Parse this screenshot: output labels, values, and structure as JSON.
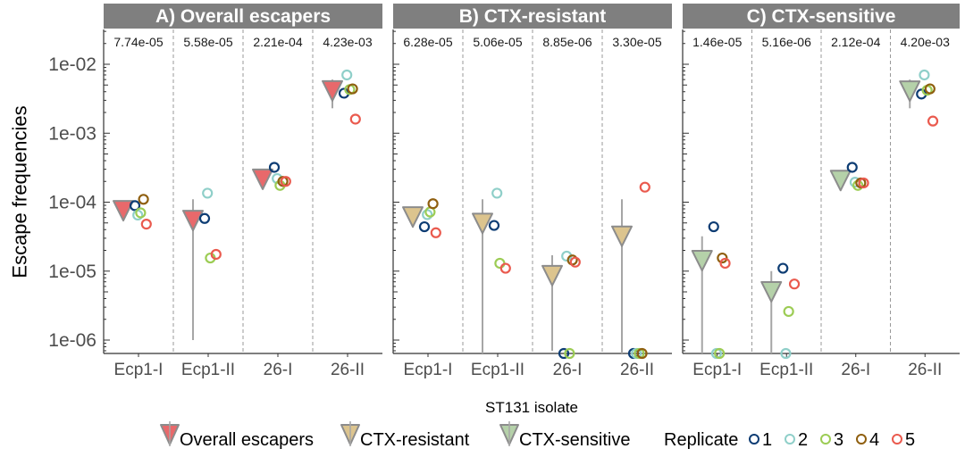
{
  "chart_data": {
    "type": "scatter",
    "ylabel": "Escape frequencies",
    "xlabel": "ST131 isolate",
    "yscale": "log10",
    "ylim": [
      6e-07,
      0.03
    ],
    "yticks": [
      {
        "value": 0.01,
        "label": "1e-02"
      },
      {
        "value": 0.001,
        "label": "1e-03"
      },
      {
        "value": 0.0001,
        "label": "1e-04"
      },
      {
        "value": 1e-05,
        "label": "1e-05"
      },
      {
        "value": 1e-06,
        "label": "1e-06"
      }
    ],
    "categories": [
      "Ecp1-I",
      "Ecp1-II",
      "26-I",
      "26-II"
    ],
    "grid": false,
    "legend_position": "bottom",
    "legend": {
      "means": [
        {
          "name": "Overall escapers",
          "color": "#e8696b"
        },
        {
          "name": "CTX-resistant",
          "color": "#dcc48e"
        },
        {
          "name": "CTX-sensitive",
          "color": "#b5d1a9"
        }
      ],
      "replicate_title": "Replicate",
      "replicates": [
        {
          "name": "1",
          "color": "#0d3c73"
        },
        {
          "name": "2",
          "color": "#8fcfc9"
        },
        {
          "name": "3",
          "color": "#9ccc54"
        },
        {
          "name": "4",
          "color": "#8f5f0f"
        },
        {
          "name": "5",
          "color": "#ea5a4e"
        }
      ]
    },
    "panels": [
      {
        "title": "A)  Overall escapers",
        "mean_color": "#e8696b",
        "groups": [
          {
            "category": "Ecp1-I",
            "mean": 7.74e-05,
            "mean_label": "7.74e-05",
            "err": [
              5.5e-05,
              0.0001
            ],
            "replicates": [
              8.9e-05,
              6.5e-05,
              7e-05,
              0.00011,
              4.8e-05
            ]
          },
          {
            "category": "Ecp1-II",
            "mean": 5.58e-05,
            "mean_label": "5.58e-05",
            "err": [
              1e-06,
              0.00011
            ],
            "replicates": [
              5.8e-05,
              0.000135,
              1.55e-05,
              null,
              1.75e-05
            ]
          },
          {
            "category": "26-I",
            "mean": 0.000221,
            "mean_label": "2.21e-04",
            "err": [
              0.00019,
              0.00025
            ],
            "replicates": [
              0.00032,
              0.00022,
              0.000175,
              0.0002,
              0.0002
            ]
          },
          {
            "category": "26-II",
            "mean": 0.00423,
            "mean_label": "4.23e-03",
            "err": [
              0.0023,
              0.006
            ],
            "replicates": [
              0.0038,
              0.007,
              0.0043,
              0.0044,
              0.0016
            ]
          }
        ]
      },
      {
        "title": "B)  CTX-resistant",
        "mean_color": "#dcc48e",
        "groups": [
          {
            "category": "Ecp1-I",
            "mean": 6.28e-05,
            "mean_label": "6.28e-05",
            "err": [
              4.3e-05,
              8.2e-05
            ],
            "replicates": [
              4.4e-05,
              6.6e-05,
              7.2e-05,
              9.5e-05,
              3.6e-05
            ]
          },
          {
            "category": "Ecp1-II",
            "mean": 5.06e-05,
            "mean_label": "5.06e-05",
            "err": [
              6e-07,
              0.00011
            ],
            "replicates": [
              4.6e-05,
              0.000135,
              1.3e-05,
              null,
              1.1e-05
            ]
          },
          {
            "category": "26-I",
            "mean": 8.85e-06,
            "mean_label": "8.85e-06",
            "err": [
              7e-07,
              1.7e-05
            ],
            "replicates": [
              6e-07,
              1.65e-05,
              6e-07,
              1.45e-05,
              1.35e-05
            ]
          },
          {
            "category": "26-II",
            "mean": 3.3e-05,
            "mean_label": "3.30e-05",
            "err": [
              6e-07,
              0.00011
            ],
            "replicates": [
              6e-07,
              6e-07,
              6e-07,
              6e-07,
              0.000165
            ]
          }
        ]
      },
      {
        "title": "C)  CTX-sensitive",
        "mean_color": "#b5d1a9",
        "groups": [
          {
            "category": "Ecp1-I",
            "mean": 1.46e-05,
            "mean_label": "1.46e-05",
            "err": [
              6e-07,
              3.2e-05
            ],
            "replicates": [
              4.4e-05,
              6e-07,
              6e-07,
              1.55e-05,
              1.3e-05
            ]
          },
          {
            "category": "Ecp1-II",
            "mean": 5.16e-06,
            "mean_label": "5.16e-06",
            "err": [
              6e-07,
              1e-05
            ],
            "replicates": [
              1.1e-05,
              6e-07,
              2.6e-06,
              null,
              6.5e-06
            ]
          },
          {
            "category": "26-I",
            "mean": 0.000212,
            "mean_label": "2.12e-04",
            "err": [
              0.00018,
              0.00024
            ],
            "replicates": [
              0.00032,
              0.000195,
              0.000175,
              0.00019,
              0.00019
            ]
          },
          {
            "category": "26-II",
            "mean": 0.0042,
            "mean_label": "4.20e-03",
            "err": [
              0.0023,
              0.006
            ],
            "replicates": [
              0.0037,
              0.007,
              0.0042,
              0.0044,
              0.0015
            ]
          }
        ]
      }
    ]
  }
}
